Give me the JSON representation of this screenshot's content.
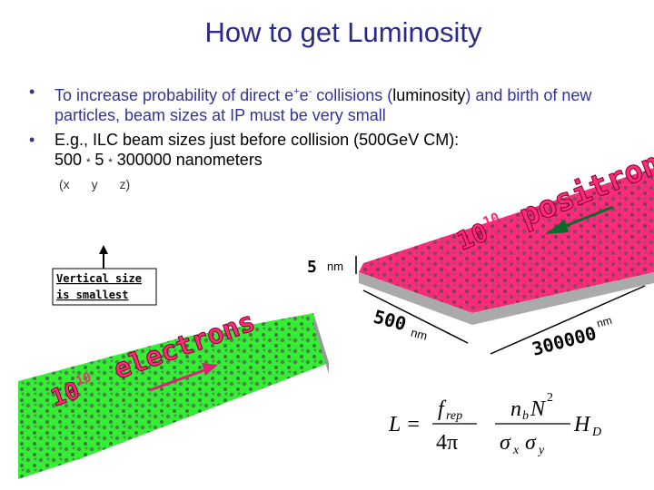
{
  "title": "How to get Luminosity",
  "bullets": [
    {
      "parts": [
        "To increase probability of direct e",
        "+",
        "e",
        "-",
        " collisions (",
        "luminosity",
        ") and birth of new particles, beam sizes at IP must be very small"
      ]
    },
    {
      "parts": [
        "E.g., ILC beam sizes just before collision (500GeV CM):"
      ],
      "line2": [
        "500",
        "*",
        "5",
        "*",
        "300000 nanometers"
      ],
      "axes": [
        "(x",
        "y",
        "z)"
      ]
    }
  ],
  "diagram": {
    "positrons": "positrons",
    "positron_count": {
      "base": "10",
      "exp": "10"
    },
    "electrons": "electrons",
    "electron_count": {
      "base": "10",
      "exp": "10"
    },
    "vertical_label": [
      "Vertical size",
      "is smallest"
    ],
    "dim_y": {
      "value": "5",
      "unit": "nm"
    },
    "dim_x": {
      "value": "500",
      "unit": "nm"
    },
    "dim_z": {
      "value": "300000",
      "unit": "nm"
    }
  },
  "formula": {
    "lhs": "L =",
    "f": "f",
    "rep": "rep",
    "denom": "4π",
    "n": "n",
    "b": "b",
    "N": "N",
    "sq": "2",
    "s1": "σ",
    "x": "x",
    "s2": "σ",
    "y": "y",
    "H": "H",
    "D": "D"
  }
}
